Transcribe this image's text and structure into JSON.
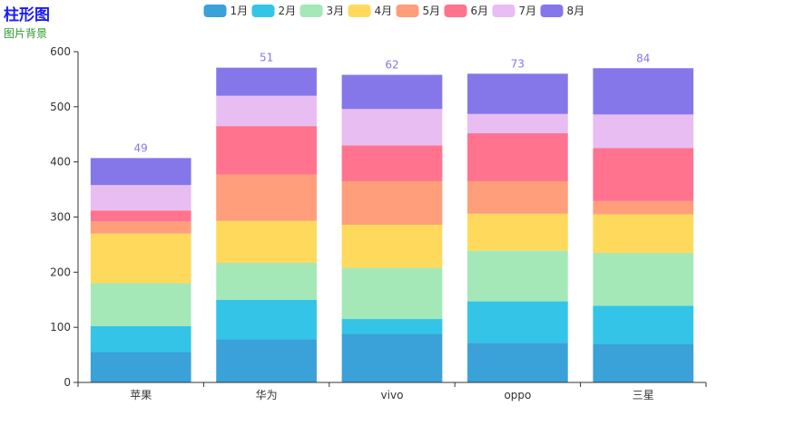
{
  "title": "柱形图",
  "subtitle": "图片背景",
  "chart_data": {
    "type": "bar",
    "stacked": true,
    "categories": [
      "苹果",
      "华为",
      "vivo",
      "oppo",
      "三星"
    ],
    "ylim": [
      0,
      600
    ],
    "yticks": [
      0,
      100,
      200,
      300,
      400,
      500,
      600
    ],
    "legend_position": "top-center",
    "series": [
      {
        "name": "1月",
        "color": "#3aa1d9",
        "values": [
          55,
          78,
          88,
          72,
          70
        ]
      },
      {
        "name": "2月",
        "color": "#33c4e8",
        "values": [
          47,
          72,
          27,
          75,
          69
        ]
      },
      {
        "name": "3月",
        "color": "#a4e8b8",
        "values": [
          78,
          67,
          93,
          92,
          96
        ]
      },
      {
        "name": "4月",
        "color": "#ffd95c",
        "values": [
          90,
          76,
          78,
          67,
          70
        ]
      },
      {
        "name": "5月",
        "color": "#ff9e7a",
        "values": [
          22,
          84,
          79,
          59,
          24
        ]
      },
      {
        "name": "6月",
        "color": "#ff738f",
        "values": [
          20,
          88,
          65,
          87,
          96
        ]
      },
      {
        "name": "7月",
        "color": "#e8bdf2",
        "values": [
          46,
          55,
          66,
          35,
          61
        ]
      },
      {
        "name": "8月",
        "color": "#8577ea",
        "values": [
          49,
          51,
          62,
          73,
          84
        ]
      }
    ],
    "top_labels": [
      "49",
      "51",
      "62",
      "73",
      "84"
    ],
    "top_label_color": "#8577ea"
  }
}
